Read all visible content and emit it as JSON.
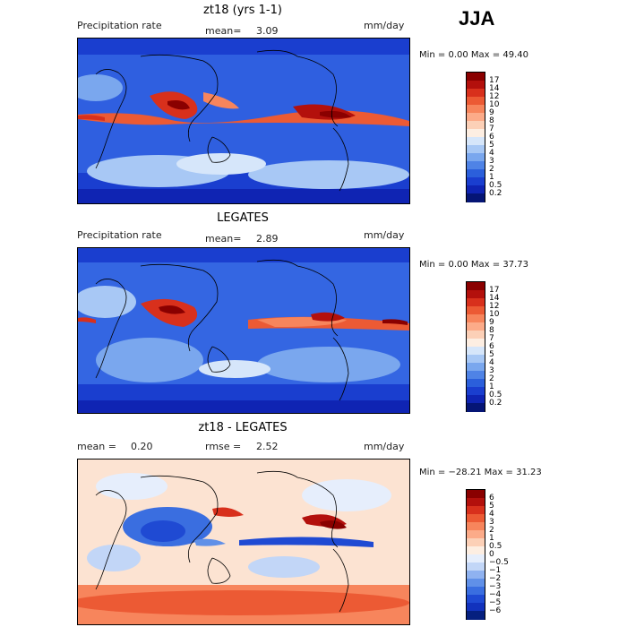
{
  "season": "JJA",
  "panels": [
    {
      "title": "zt18 (yrs 1-1)",
      "left_label": "Precipitation rate",
      "center_label": "mean=",
      "center_value": "3.09",
      "right_label": "mm/day",
      "minmax": "Min =    0.00 Max =   49.40",
      "colorbar_labels": [
        "17",
        "14",
        "12",
        "10",
        "9",
        "8",
        "7",
        "6",
        "5",
        "4",
        "3",
        "2",
        "1",
        "0.5",
        "0.2"
      ],
      "colors": [
        "#8a0000",
        "#b3100c",
        "#d8301c",
        "#ec5a34",
        "#f7855c",
        "#fcab89",
        "#fcd0b7",
        "#fdeee2",
        "#d6e6fa",
        "#a8c8f5",
        "#7aa7ee",
        "#4f83e6",
        "#2b5fdb",
        "#1a3ecf",
        "#0f24b3",
        "#051575"
      ],
      "map_base": "#2f5fe0"
    },
    {
      "title": "LEGATES",
      "left_label": "Precipitation rate",
      "center_label": "mean=",
      "center_value": "2.89",
      "right_label": "mm/day",
      "minmax": "Min =    0.00 Max =   37.73",
      "colorbar_labels": [
        "17",
        "14",
        "12",
        "10",
        "9",
        "8",
        "7",
        "6",
        "5",
        "4",
        "3",
        "2",
        "1",
        "0.5",
        "0.2"
      ],
      "colors": [
        "#8a0000",
        "#b3100c",
        "#d8301c",
        "#ec5a34",
        "#f7855c",
        "#fcab89",
        "#fcd0b7",
        "#fdeee2",
        "#d6e6fa",
        "#a8c8f5",
        "#7aa7ee",
        "#4f83e6",
        "#2b5fdb",
        "#1a3ecf",
        "#0f24b3",
        "#051575"
      ],
      "map_base": "#3466e2"
    },
    {
      "title": "zt18 - LEGATES",
      "left_label": "mean =",
      "left_value": "0.20",
      "center_label": "rmse =",
      "center_value": "2.52",
      "right_label": "mm/day",
      "minmax": "Min = −28.21 Max =   31.23",
      "colorbar_labels": [
        "6",
        "5",
        "4",
        "3",
        "2",
        "1",
        "0.5",
        "0",
        "−0.5",
        "−1",
        "−2",
        "−3",
        "−4",
        "−5",
        "−6"
      ],
      "colors": [
        "#8a0000",
        "#b3100c",
        "#d8301c",
        "#ec5a34",
        "#f7855c",
        "#fcab89",
        "#fcd0b7",
        "#fdeee2",
        "#e6eefc",
        "#c2d6f7",
        "#8fb2f0",
        "#6090e8",
        "#3a6ee0",
        "#1f4ad3",
        "#1232bd",
        "#06207f"
      ],
      "map_base": "#fce3d2"
    }
  ]
}
